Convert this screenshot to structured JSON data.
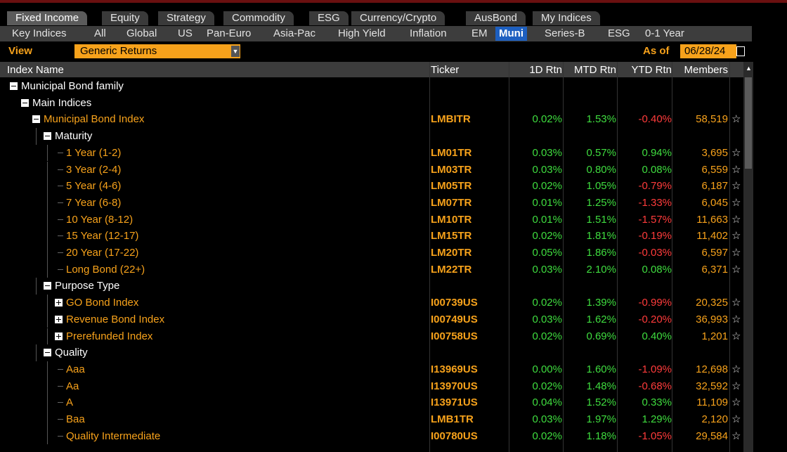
{
  "tabs": [
    "Fixed Income",
    "Equity",
    "Strategy",
    "Commodity",
    "ESG",
    "Currency/Crypto",
    "AusBond",
    "My Indices"
  ],
  "selected_tab": 0,
  "subtabs": [
    "Key Indices",
    "All",
    "Global",
    "US",
    "Pan-Euro",
    "Asia-Pac",
    "High Yield",
    "Inflation",
    "EM",
    "Muni",
    "Series-B",
    "ESG",
    "0-1 Year"
  ],
  "selected_subtab": 9,
  "toolbar": {
    "view_label": "View",
    "view_value": "Generic Returns",
    "as_of_label": "As of",
    "as_of_date": "06/28/24"
  },
  "table": {
    "columns": [
      "Index Name",
      "Ticker",
      "1D Rtn",
      "MTD Rtn",
      "YTD Rtn",
      "Members"
    ],
    "rows": [
      {
        "name": "Municipal Bond family",
        "level": 0,
        "node": "open",
        "group": true
      },
      {
        "name": "Main Indices",
        "level": 1,
        "node": "open",
        "group": true
      },
      {
        "name": "Municipal Bond Index",
        "level": 2,
        "node": "open",
        "group": false,
        "ticker": "LMBITR",
        "d1": "0.02%",
        "mtd": "1.53%",
        "ytd": "-0.40%",
        "members": "58,519"
      },
      {
        "name": "Maturity",
        "level": 3,
        "node": "open",
        "group": true
      },
      {
        "name": "1 Year (1-2)",
        "level": 4,
        "node": "leaf",
        "group": false,
        "ticker": "LM01TR",
        "d1": "0.03%",
        "mtd": "0.57%",
        "ytd": "0.94%",
        "members": "3,695"
      },
      {
        "name": "3 Year (2-4)",
        "level": 4,
        "node": "leaf",
        "group": false,
        "ticker": "LM03TR",
        "d1": "0.03%",
        "mtd": "0.80%",
        "ytd": "0.08%",
        "members": "6,559"
      },
      {
        "name": "5 Year (4-6)",
        "level": 4,
        "node": "leaf",
        "group": false,
        "ticker": "LM05TR",
        "d1": "0.02%",
        "mtd": "1.05%",
        "ytd": "-0.79%",
        "members": "6,187"
      },
      {
        "name": "7 Year (6-8)",
        "level": 4,
        "node": "leaf",
        "group": false,
        "ticker": "LM07TR",
        "d1": "0.01%",
        "mtd": "1.25%",
        "ytd": "-1.33%",
        "members": "6,045"
      },
      {
        "name": "10 Year (8-12)",
        "level": 4,
        "node": "leaf",
        "group": false,
        "ticker": "LM10TR",
        "d1": "0.01%",
        "mtd": "1.51%",
        "ytd": "-1.57%",
        "members": "11,663"
      },
      {
        "name": "15 Year (12-17)",
        "level": 4,
        "node": "leaf",
        "group": false,
        "ticker": "LM15TR",
        "d1": "0.02%",
        "mtd": "1.81%",
        "ytd": "-0.19%",
        "members": "11,402"
      },
      {
        "name": "20 Year (17-22)",
        "level": 4,
        "node": "leaf",
        "group": false,
        "ticker": "LM20TR",
        "d1": "0.05%",
        "mtd": "1.86%",
        "ytd": "-0.03%",
        "members": "6,597"
      },
      {
        "name": "Long Bond (22+)",
        "level": 4,
        "node": "leaf",
        "group": false,
        "ticker": "LM22TR",
        "d1": "0.03%",
        "mtd": "2.10%",
        "ytd": "0.08%",
        "members": "6,371"
      },
      {
        "name": "Purpose Type",
        "level": 3,
        "node": "open",
        "group": true
      },
      {
        "name": "GO Bond Index",
        "level": 4,
        "node": "closed",
        "group": false,
        "ticker": "I00739US",
        "d1": "0.02%",
        "mtd": "1.39%",
        "ytd": "-0.99%",
        "members": "20,325"
      },
      {
        "name": "Revenue Bond Index",
        "level": 4,
        "node": "closed",
        "group": false,
        "ticker": "I00749US",
        "d1": "0.03%",
        "mtd": "1.62%",
        "ytd": "-0.20%",
        "members": "36,993"
      },
      {
        "name": "Prerefunded Index",
        "level": 4,
        "node": "closed",
        "group": false,
        "ticker": "I00758US",
        "d1": "0.02%",
        "mtd": "0.69%",
        "ytd": "0.40%",
        "members": "1,201"
      },
      {
        "name": "Quality",
        "level": 3,
        "node": "open",
        "group": true
      },
      {
        "name": "Aaa",
        "level": 4,
        "node": "leaf",
        "group": false,
        "ticker": "I13969US",
        "d1": "0.00%",
        "mtd": "1.60%",
        "ytd": "-1.09%",
        "members": "12,698"
      },
      {
        "name": "Aa",
        "level": 4,
        "node": "leaf",
        "group": false,
        "ticker": "I13970US",
        "d1": "0.02%",
        "mtd": "1.48%",
        "ytd": "-0.68%",
        "members": "32,592"
      },
      {
        "name": "A",
        "level": 4,
        "node": "leaf",
        "group": false,
        "ticker": "I13971US",
        "d1": "0.04%",
        "mtd": "1.52%",
        "ytd": "0.33%",
        "members": "11,109"
      },
      {
        "name": "Baa",
        "level": 4,
        "node": "leaf",
        "group": false,
        "ticker": "LMB1TR",
        "d1": "0.03%",
        "mtd": "1.97%",
        "ytd": "1.29%",
        "members": "2,120"
      },
      {
        "name": "Quality Intermediate",
        "level": 4,
        "node": "leaf",
        "group": false,
        "ticker": "I00780US",
        "d1": "0.02%",
        "mtd": "1.18%",
        "ytd": "-1.05%",
        "members": "29,584"
      }
    ]
  }
}
